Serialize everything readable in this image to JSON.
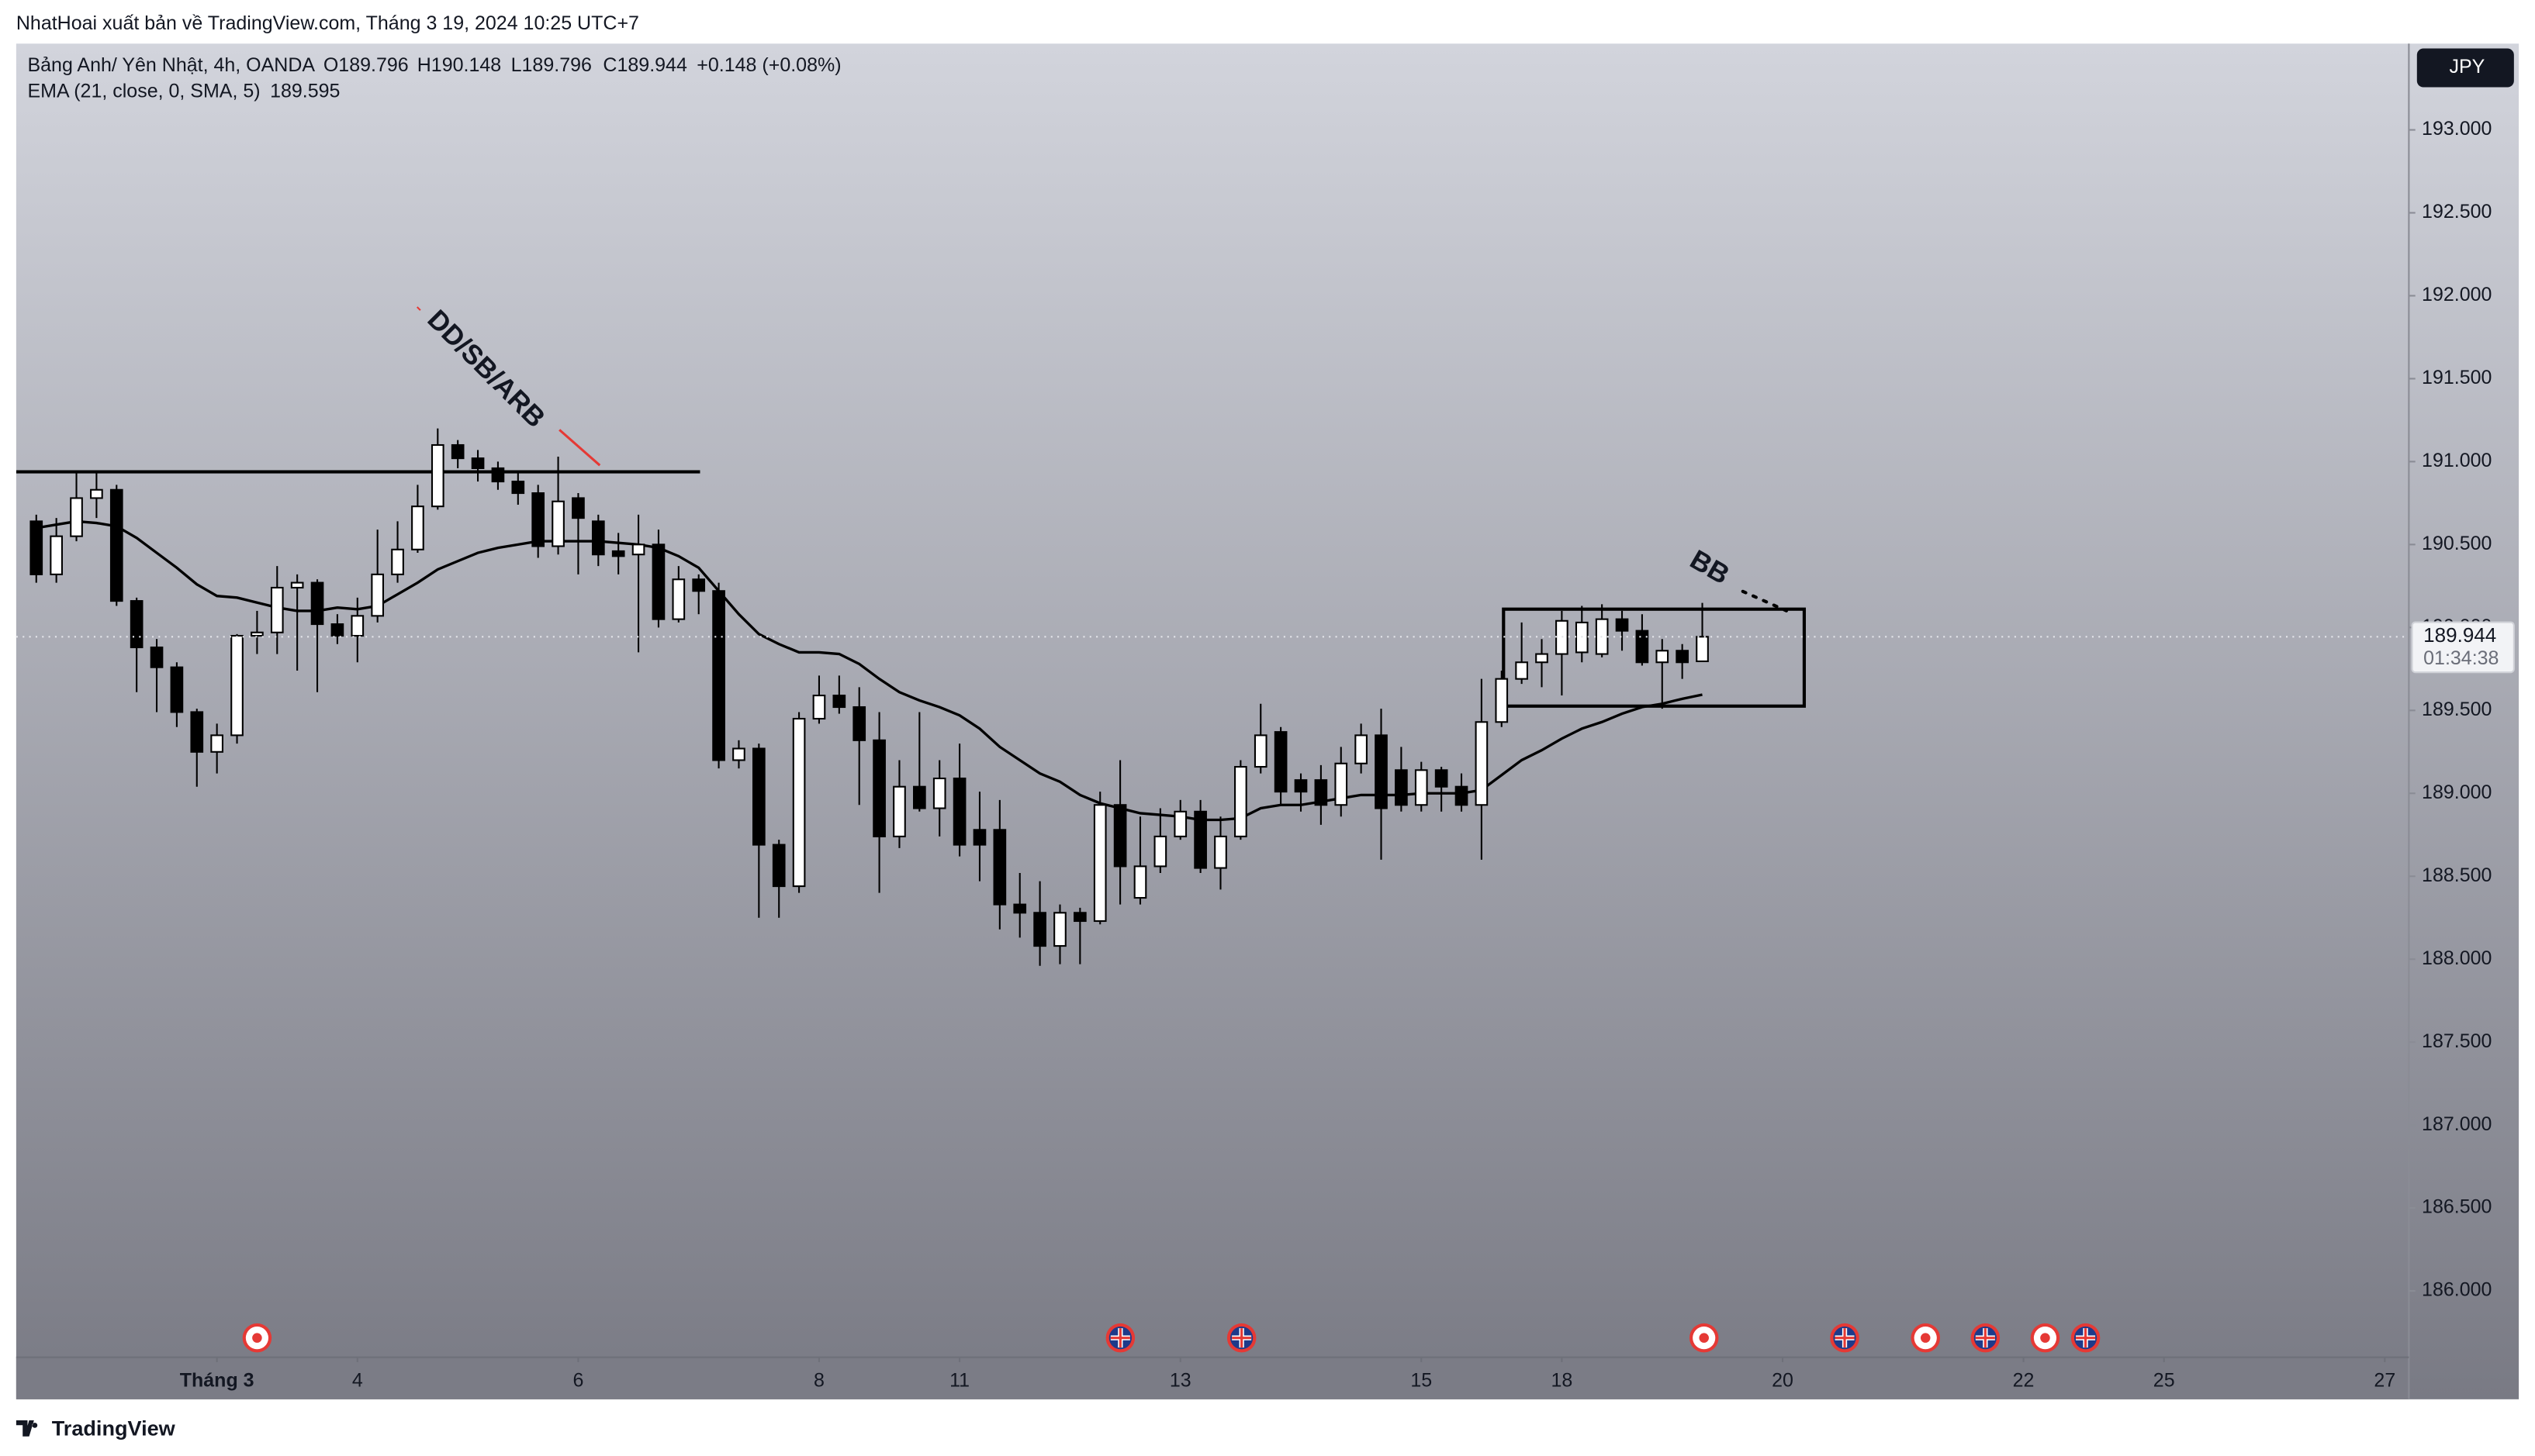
{
  "header": {
    "publisher": "NhatHoai xuất bản về TradingView.com, Tháng 3 19, 2024 10:25 UTC+7"
  },
  "chart_data": {
    "type": "candlestick",
    "symbol": "Bảng Anh/ Yên Nhật, 4h, OANDA",
    "ohlc_labels": [
      "O189.796",
      "H190.148",
      "L189.796",
      "C189.944",
      "+0.148 (+0.08%)"
    ],
    "currency": "JPY",
    "countdown": "01:34:38",
    "annotations": [
      "DD/SB/ARB",
      "BB"
    ],
    "up_color": "#ffffff",
    "down_color": "#000000",
    "open": [
      190.64,
      190.32,
      190.55,
      190.78,
      190.83,
      190.16,
      189.88,
      189.76,
      189.49,
      189.25,
      189.35,
      189.95,
      189.97,
      190.24,
      190.27,
      190.02,
      189.95,
      190.07,
      190.32,
      190.47,
      190.73,
      191.1,
      191.02,
      190.96,
      190.88,
      190.81,
      190.49,
      190.78,
      190.64,
      190.46,
      190.44,
      190.5,
      190.05,
      190.29,
      190.22,
      189.2,
      189.27,
      188.69,
      188.44,
      189.45,
      189.59,
      189.52,
      189.32,
      188.74,
      189.04,
      188.91,
      189.09,
      188.78,
      188.78,
      188.33,
      188.28,
      188.08,
      188.28,
      188.23,
      188.93,
      188.37,
      188.56,
      188.74,
      188.89,
      188.55,
      188.74,
      189.16,
      189.37,
      189.08,
      189.08,
      188.93,
      189.18,
      189.35,
      189.14,
      188.93,
      189.14,
      189.04,
      188.93,
      189.43,
      189.69,
      189.79,
      189.84,
      189.85,
      189.84,
      190.05,
      189.98,
      189.79,
      189.86,
      189.796
    ],
    "high": [
      190.68,
      190.66,
      190.93,
      190.94,
      190.86,
      190.18,
      189.93,
      189.79,
      189.51,
      189.42,
      189.96,
      190.1,
      190.37,
      190.32,
      190.29,
      190.08,
      190.18,
      190.59,
      190.64,
      190.86,
      191.2,
      191.13,
      191.07,
      191.0,
      190.94,
      190.86,
      191.03,
      190.81,
      190.68,
      190.57,
      190.68,
      190.59,
      190.37,
      190.32,
      190.27,
      189.32,
      189.3,
      188.72,
      189.49,
      189.71,
      189.71,
      189.64,
      189.49,
      189.2,
      189.49,
      189.2,
      189.3,
      189.01,
      188.96,
      188.52,
      188.47,
      188.33,
      188.31,
      189.01,
      189.2,
      188.86,
      188.91,
      188.96,
      188.96,
      188.86,
      189.2,
      189.54,
      189.4,
      189.12,
      189.17,
      189.28,
      189.42,
      189.51,
      189.28,
      189.19,
      189.16,
      189.12,
      189.69,
      189.74,
      190.03,
      189.93,
      190.1,
      190.13,
      190.14,
      190.1,
      190.08,
      189.93,
      189.9,
      190.148
    ],
    "low": [
      190.27,
      190.27,
      190.52,
      190.66,
      190.13,
      189.61,
      189.49,
      189.4,
      189.04,
      189.12,
      189.3,
      189.84,
      189.84,
      189.74,
      189.61,
      189.9,
      189.79,
      190.03,
      190.27,
      190.45,
      190.71,
      190.96,
      190.88,
      190.83,
      190.74,
      190.42,
      190.44,
      190.32,
      190.37,
      190.32,
      189.85,
      190.0,
      190.03,
      190.08,
      189.15,
      189.15,
      188.25,
      188.25,
      188.4,
      189.42,
      189.48,
      188.93,
      188.4,
      188.67,
      188.89,
      188.74,
      188.62,
      188.47,
      188.18,
      188.13,
      187.96,
      187.97,
      187.97,
      188.21,
      188.33,
      188.33,
      188.52,
      188.72,
      188.52,
      188.42,
      188.72,
      189.12,
      188.93,
      188.89,
      188.81,
      188.86,
      189.12,
      188.6,
      188.89,
      188.89,
      188.89,
      188.89,
      188.6,
      189.4,
      189.66,
      189.64,
      189.59,
      189.79,
      189.82,
      189.86,
      189.77,
      189.51,
      189.69,
      189.796
    ],
    "close": [
      190.32,
      190.55,
      190.78,
      190.83,
      190.16,
      189.88,
      189.76,
      189.49,
      189.25,
      189.35,
      189.95,
      189.97,
      190.24,
      190.27,
      190.02,
      189.95,
      190.07,
      190.32,
      190.47,
      190.73,
      191.1,
      191.02,
      190.96,
      190.88,
      190.81,
      190.49,
      190.76,
      190.66,
      190.44,
      190.43,
      190.5,
      190.05,
      190.29,
      190.22,
      189.2,
      189.27,
      188.69,
      188.44,
      189.45,
      189.59,
      189.52,
      189.32,
      188.74,
      189.04,
      188.91,
      189.09,
      188.69,
      188.69,
      188.33,
      188.28,
      188.08,
      188.28,
      188.23,
      188.93,
      188.56,
      188.56,
      188.74,
      188.89,
      188.55,
      188.74,
      189.16,
      189.35,
      189.01,
      189.01,
      188.93,
      189.18,
      189.35,
      188.91,
      188.93,
      189.14,
      189.04,
      188.93,
      189.43,
      189.69,
      189.79,
      189.84,
      190.04,
      190.03,
      190.05,
      189.98,
      189.79,
      189.86,
      189.79,
      189.944
    ],
    "ema": {
      "name": "EMA (21, close, 0, SMA, 5)",
      "color": "#000000",
      "values": [
        190.6,
        190.62,
        190.64,
        190.63,
        190.61,
        190.54,
        190.45,
        190.36,
        190.26,
        190.19,
        190.18,
        190.15,
        190.12,
        190.1,
        190.1,
        190.12,
        190.11,
        190.13,
        190.2,
        190.27,
        190.35,
        190.4,
        190.45,
        190.48,
        190.5,
        190.52,
        190.52,
        190.52,
        190.52,
        190.51,
        190.5,
        190.48,
        190.43,
        190.36,
        190.22,
        190.08,
        189.96,
        189.9,
        189.85,
        189.85,
        189.84,
        189.78,
        189.69,
        189.61,
        189.56,
        189.52,
        189.47,
        189.39,
        189.28,
        189.2,
        189.12,
        189.07,
        188.99,
        188.94,
        188.91,
        188.88,
        188.87,
        188.86,
        188.84,
        188.84,
        188.85,
        188.91,
        188.93,
        188.93,
        188.95,
        188.97,
        188.99,
        188.99,
        188.99,
        189.0,
        189.0,
        189.0,
        189.02,
        189.11,
        189.2,
        189.26,
        189.33,
        189.39,
        189.43,
        189.48,
        189.52,
        189.54,
        189.57,
        189.595
      ]
    },
    "xlim": [
      -1,
      118.2
    ],
    "xticks": [
      {
        "value": 9,
        "label": "Tháng 3"
      },
      {
        "value": 16,
        "label": "4"
      },
      {
        "value": 27,
        "label": "6"
      },
      {
        "value": 39,
        "label": "8"
      },
      {
        "value": 46,
        "label": "11"
      },
      {
        "value": 57,
        "label": "13"
      },
      {
        "value": 69,
        "label": "15"
      },
      {
        "value": 76,
        "label": "18"
      },
      {
        "value": 87,
        "label": "20"
      },
      {
        "value": 99,
        "label": "22"
      },
      {
        "value": 106,
        "label": "25"
      },
      {
        "value": 117,
        "label": "27"
      }
    ],
    "ylim": [
      185.6,
      193.52
    ],
    "yticks": [
      {
        "value": 186,
        "label": "186.000"
      },
      {
        "value": 186.5,
        "label": "186.500"
      },
      {
        "value": 187,
        "label": "187.000"
      },
      {
        "value": 187.5,
        "label": "187.500"
      },
      {
        "value": 188,
        "label": "188.000"
      },
      {
        "value": 188.5,
        "label": "188.500"
      },
      {
        "value": 189,
        "label": "189.000"
      },
      {
        "value": 189.5,
        "label": "189.500"
      },
      {
        "value": 190,
        "label": "190.000"
      },
      {
        "value": 190.5,
        "label": "190.500"
      },
      {
        "value": 191,
        "label": "191.000"
      },
      {
        "value": 191.5,
        "label": "191.500"
      },
      {
        "value": 192,
        "label": "192.000"
      },
      {
        "value": 192.5,
        "label": "192.500"
      },
      {
        "value": 193,
        "label": "193.000"
      }
    ],
    "grid": false
  },
  "footer": {
    "brand": "TradingView"
  }
}
